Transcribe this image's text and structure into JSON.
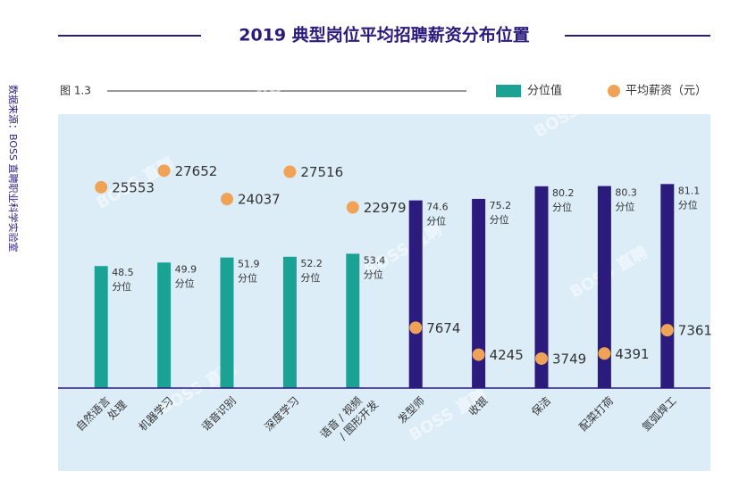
{
  "chart_data": {
    "type": "bar_dot",
    "title": "2019 典型岗位平均招聘薪资分布位置",
    "figure_label": "图 1.3",
    "source": "数据来源：BOSS 直聘职业科学实验室",
    "watermark": "BOSS 直聘",
    "categories": [
      "自然语言\n处理",
      "机器学习",
      "语音识别",
      "深度学习",
      "语音 / 视频\n/ 图形开发",
      "发型师",
      "收银",
      "保洁",
      "配菜打荷",
      "氩弧焊工"
    ],
    "series": [
      {
        "name": "分位值",
        "color": "#1aa394",
        "colors": [
          "#1aa394",
          "#1aa394",
          "#1aa394",
          "#1aa394",
          "#1aa394",
          "#2b1b7d",
          "#2b1b7d",
          "#2b1b7d",
          "#2b1b7d",
          "#2b1b7d"
        ],
        "value_unit": "分位",
        "values": [
          48.5,
          49.9,
          51.9,
          52.2,
          53.4,
          74.6,
          75.2,
          80.2,
          80.3,
          81.1
        ]
      },
      {
        "name": "平均薪资（元）",
        "color": "#f0a257",
        "axis": "y2",
        "values": [
          25553,
          27652,
          24037,
          27516,
          22979,
          7674,
          4245,
          3749,
          4391,
          7361
        ]
      }
    ],
    "ylim": [
      0,
      100
    ],
    "y2lim": [
      0,
      32000
    ],
    "legend": "top-right"
  }
}
